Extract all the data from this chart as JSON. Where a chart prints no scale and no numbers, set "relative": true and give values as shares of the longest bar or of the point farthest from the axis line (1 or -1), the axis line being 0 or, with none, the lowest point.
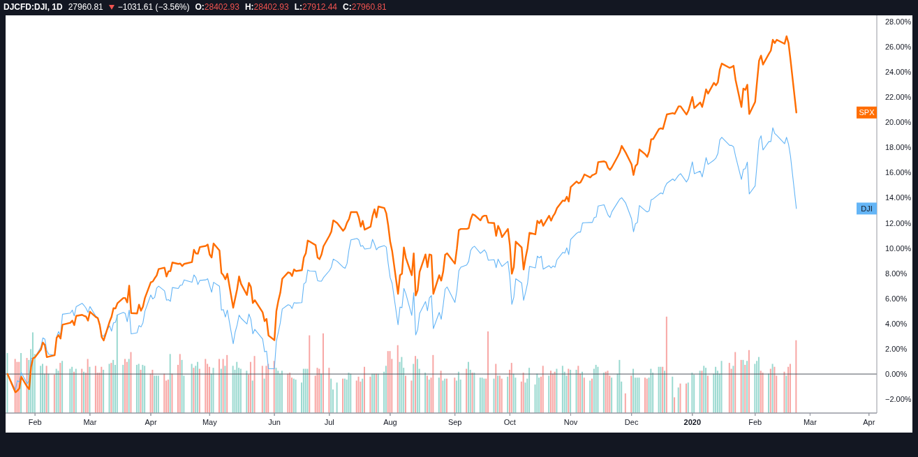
{
  "chart_data": [
    {
      "type": "line",
      "title": "DJCFD:DJI, 1D",
      "annotations": [
        "27960.81",
        "−1031.61 (−3.56%)",
        "O:28402.93",
        "H:28402.93",
        "L:27912.44",
        "C:27960.81"
      ],
      "x": [
        "2019-01-18",
        "2019-01-22",
        "2019-01-23",
        "2019-01-24",
        "2019-01-25",
        "2019-01-28",
        "2019-01-29",
        "2019-01-30",
        "2019-01-31",
        "2019-02-01",
        "2019-02-04",
        "2019-02-05",
        "2019-02-06",
        "2019-02-07",
        "2019-02-08",
        "2019-02-11",
        "2019-02-12",
        "2019-02-13",
        "2019-02-14",
        "2019-02-15",
        "2019-02-19",
        "2019-02-20",
        "2019-02-21",
        "2019-02-22",
        "2019-02-25",
        "2019-02-26",
        "2019-02-27",
        "2019-02-28",
        "2019-03-01",
        "2019-03-04",
        "2019-03-05",
        "2019-03-06",
        "2019-03-07",
        "2019-03-08",
        "2019-03-11",
        "2019-03-12",
        "2019-03-13",
        "2019-03-14",
        "2019-03-15",
        "2019-03-18",
        "2019-03-19",
        "2019-03-20",
        "2019-03-21",
        "2019-03-22",
        "2019-03-25",
        "2019-03-26",
        "2019-03-27",
        "2019-03-28",
        "2019-03-29",
        "2019-04-01",
        "2019-04-02",
        "2019-04-03",
        "2019-04-04",
        "2019-04-05",
        "2019-04-08",
        "2019-04-09",
        "2019-04-10",
        "2019-04-11",
        "2019-04-12",
        "2019-04-15",
        "2019-04-16",
        "2019-04-17",
        "2019-04-18",
        "2019-04-22",
        "2019-04-23",
        "2019-04-24",
        "2019-04-25",
        "2019-04-26",
        "2019-04-29",
        "2019-04-30",
        "2019-05-01",
        "2019-05-02",
        "2019-05-03",
        "2019-05-06",
        "2019-05-07",
        "2019-05-08",
        "2019-05-09",
        "2019-05-10",
        "2019-05-13",
        "2019-05-14",
        "2019-05-15",
        "2019-05-16",
        "2019-05-17",
        "2019-05-20",
        "2019-05-21",
        "2019-05-22",
        "2019-05-23",
        "2019-05-24",
        "2019-05-28",
        "2019-05-29",
        "2019-05-30",
        "2019-05-31",
        "2019-06-03",
        "2019-06-04",
        "2019-06-05",
        "2019-06-06",
        "2019-06-07",
        "2019-06-10",
        "2019-06-11",
        "2019-06-12",
        "2019-06-13",
        "2019-06-14",
        "2019-06-17",
        "2019-06-18",
        "2019-06-19",
        "2019-06-20",
        "2019-06-21",
        "2019-06-24",
        "2019-06-25",
        "2019-06-26",
        "2019-06-27",
        "2019-06-28",
        "2019-07-01",
        "2019-07-02",
        "2019-07-03",
        "2019-07-05",
        "2019-07-08",
        "2019-07-09",
        "2019-07-10",
        "2019-07-11",
        "2019-07-12",
        "2019-07-15",
        "2019-07-16",
        "2019-07-17",
        "2019-07-18",
        "2019-07-19",
        "2019-07-22",
        "2019-07-23",
        "2019-07-24",
        "2019-07-25",
        "2019-07-26",
        "2019-07-29",
        "2019-07-30",
        "2019-07-31",
        "2019-08-01",
        "2019-08-02",
        "2019-08-05",
        "2019-08-06",
        "2019-08-07",
        "2019-08-08",
        "2019-08-09",
        "2019-08-12",
        "2019-08-13",
        "2019-08-14",
        "2019-08-15",
        "2019-08-16",
        "2019-08-19",
        "2019-08-20",
        "2019-08-21",
        "2019-08-22",
        "2019-08-23",
        "2019-08-26",
        "2019-08-27",
        "2019-08-28",
        "2019-08-29",
        "2019-08-30",
        "2019-09-03",
        "2019-09-04",
        "2019-09-05",
        "2019-09-06",
        "2019-09-09",
        "2019-09-10",
        "2019-09-11",
        "2019-09-12",
        "2019-09-13",
        "2019-09-16",
        "2019-09-17",
        "2019-09-18",
        "2019-09-19",
        "2019-09-20",
        "2019-09-23",
        "2019-09-24",
        "2019-09-25",
        "2019-09-26",
        "2019-09-27",
        "2019-09-30",
        "2019-10-01",
        "2019-10-02",
        "2019-10-03",
        "2019-10-04",
        "2019-10-07",
        "2019-10-08",
        "2019-10-09",
        "2019-10-10",
        "2019-10-11",
        "2019-10-14",
        "2019-10-15",
        "2019-10-16",
        "2019-10-17",
        "2019-10-18",
        "2019-10-21",
        "2019-10-22",
        "2019-10-23",
        "2019-10-24",
        "2019-10-25",
        "2019-10-28",
        "2019-10-29",
        "2019-10-30",
        "2019-10-31",
        "2019-11-01",
        "2019-11-04",
        "2019-11-05",
        "2019-11-06",
        "2019-11-07",
        "2019-11-08",
        "2019-11-11",
        "2019-11-12",
        "2019-11-13",
        "2019-11-14",
        "2019-11-15",
        "2019-11-18",
        "2019-11-19",
        "2019-11-20",
        "2019-11-21",
        "2019-11-22",
        "2019-11-25",
        "2019-11-26",
        "2019-11-27",
        "2019-11-29",
        "2019-12-02",
        "2019-12-03",
        "2019-12-04",
        "2019-12-05",
        "2019-12-06",
        "2019-12-09",
        "2019-12-10",
        "2019-12-11",
        "2019-12-12",
        "2019-12-13",
        "2019-12-16",
        "2019-12-17",
        "2019-12-18",
        "2019-12-19",
        "2019-12-20",
        "2019-12-23",
        "2019-12-24",
        "2019-12-26",
        "2019-12-27",
        "2019-12-30",
        "2019-12-31",
        "2020-01-02",
        "2020-01-03",
        "2020-01-06",
        "2020-01-07",
        "2020-01-08",
        "2020-01-09",
        "2020-01-10",
        "2020-01-13",
        "2020-01-14",
        "2020-01-15",
        "2020-01-16",
        "2020-01-17",
        "2020-01-21",
        "2020-01-22",
        "2020-01-23",
        "2020-01-24",
        "2020-01-27",
        "2020-01-28",
        "2020-01-29",
        "2020-01-30",
        "2020-01-31",
        "2020-02-03",
        "2020-02-04",
        "2020-02-05",
        "2020-02-06",
        "2020-02-07",
        "2020-02-10",
        "2020-02-11",
        "2020-02-12",
        "2020-02-13",
        "2020-02-14",
        "2020-02-18",
        "2020-02-19",
        "2020-02-20",
        "2020-02-21",
        "2020-02-24"
      ],
      "xlim": [
        "2019-01-17",
        "2020-04-05"
      ],
      "xticks": [
        {
          "value": "2019-02-01",
          "label": "Feb"
        },
        {
          "value": "2019-03-01",
          "label": "Mar"
        },
        {
          "value": "2019-04-01",
          "label": "Apr"
        },
        {
          "value": "2019-05-01",
          "label": "May"
        },
        {
          "value": "2019-06-03",
          "label": "Jun"
        },
        {
          "value": "2019-07-01",
          "label": "Jul"
        },
        {
          "value": "2019-08-01",
          "label": "Aug"
        },
        {
          "value": "2019-09-03",
          "label": "Sep"
        },
        {
          "value": "2019-10-01",
          "label": "Oct"
        },
        {
          "value": "2019-11-01",
          "label": "Nov"
        },
        {
          "value": "2019-12-02",
          "label": "Dec"
        },
        {
          "value": "2020-01-02",
          "label": "2020"
        },
        {
          "value": "2020-02-03",
          "label": "Feb"
        },
        {
          "value": "2020-03-02",
          "label": "Mar"
        },
        {
          "value": "2020-04-01",
          "label": "Apr"
        }
      ],
      "ylim": [
        -3.1,
        28.5
      ],
      "yticks": [
        {
          "value": -2,
          "label": "−2.00%"
        },
        {
          "value": 0,
          "label": "0.00%"
        },
        {
          "value": 2,
          "label": "2.00%"
        },
        {
          "value": 4,
          "label": "4.00%"
        },
        {
          "value": 6,
          "label": "6.00%"
        },
        {
          "value": 8,
          "label": "8.00%"
        },
        {
          "value": 10,
          "label": "10.00%"
        },
        {
          "value": 12,
          "label": "12.00%"
        },
        {
          "value": 14,
          "label": "14.00%"
        },
        {
          "value": 16,
          "label": "16.00%"
        },
        {
          "value": 18,
          "label": "18.00%"
        },
        {
          "value": 20,
          "label": "20.00%"
        },
        {
          "value": 22,
          "label": "22.00%"
        },
        {
          "value": 24,
          "label": "24.00%"
        },
        {
          "value": 26,
          "label": "26.00%"
        },
        {
          "value": 28,
          "label": "28.00%"
        }
      ],
      "series": [
        {
          "name": "DJI",
          "color": "#64b5f6",
          "values": [
            0,
            -1.27,
            -0.53,
            -0.63,
            0.11,
            -0.76,
            -0.53,
            1.25,
            1.25,
            1.34,
            2.14,
            2.87,
            2.78,
            1.86,
            1.57,
            1.49,
            2.93,
            3.37,
            3.06,
            4.75,
            4.84,
            5.08,
            4.62,
            5.36,
            5.62,
            5.45,
            5.23,
            4.9,
            5.36,
            4.59,
            4.48,
            3.92,
            3.06,
            3.0,
            3.83,
            3.41,
            4.07,
            4.11,
            4.7,
            4.9,
            4.81,
            4.16,
            5.08,
            3.19,
            3.28,
            3.85,
            3.74,
            4.07,
            4.99,
            6.28,
            5.97,
            6.1,
            6.83,
            6.98,
            6.61,
            5.87,
            5.91,
            5.78,
            6.87,
            6.8,
            7.05,
            7.07,
            7.48,
            7.29,
            7.88,
            7.66,
            7.11,
            7.44,
            7.48,
            7.57,
            7.02,
            6.5,
            7.29,
            6.98,
            5.08,
            5.12,
            4.53,
            5.08,
            2.41,
            3.33,
            3.89,
            4.68,
            4.44,
            3.98,
            4.77,
            4.35,
            3.19,
            3.55,
            2.78,
            1.77,
            1.82,
            0.42,
            0.42,
            2.6,
            3.33,
            4.07,
            5.17,
            5.51,
            5.45,
            5.21,
            5.67,
            5.64,
            5.67,
            7.16,
            7.29,
            8.27,
            8.18,
            8.16,
            7.42,
            7.38,
            7.38,
            7.66,
            8.21,
            8.49,
            9.13,
            8.95,
            8.49,
            8.4,
            8.77,
            9.87,
            10.66,
            10.77,
            10.66,
            10.15,
            10.2,
            9.93,
            10.0,
            10.7,
            10.33,
            9.87,
            10.06,
            10.2,
            10.09,
            8.77,
            7.66,
            7.2,
            3.92,
            5.32,
            5.27,
            6.8,
            6.37,
            4.66,
            6.46,
            3.11,
            3.52,
            4.81,
            5.76,
            5.03,
            6.06,
            6.24,
            3.61,
            4.9,
            4.35,
            5.45,
            6.74,
            6.92,
            5.69,
            6.65,
            8.21,
            8.49,
            8.67,
            8.95,
            9.82,
            10.06,
            10.15,
            9.59,
            9.72,
            9.87,
            9.63,
            9.04,
            9.08,
            8.45,
            9.13,
            8.82,
            8.55,
            8.95,
            7.66,
            5.54,
            6.1,
            7.57,
            7.24,
            5.86,
            6.5,
            7.2,
            8.55,
            8.43,
            9.37,
            9.23,
            9.37,
            8.33,
            8.61,
            8.43,
            8.59,
            8.49,
            9.07,
            9.67,
            9.61,
            10.03,
            9.49,
            10.7,
            11.18,
            11.28,
            11.28,
            12.0,
            12.02,
            12.04,
            12.04,
            12.44,
            12.48,
            13.35,
            13.45,
            13.04,
            12.64,
            12.44,
            12.9,
            13.65,
            13.89,
            14.01,
            13.59,
            12.34,
            11.3,
            11.94,
            12.04,
            13.39,
            12.98,
            12.88,
            12.98,
            13.85,
            13.91,
            14.29,
            14.39,
            14.31,
            14.85,
            15.15,
            15.5,
            15.36,
            15.8,
            15.92,
            15.26,
            15.52,
            16.86,
            15.92,
            16.12,
            15.66,
            16.36,
            17.2,
            16.66,
            17.0,
            17.16,
            17.52,
            18.61,
            18.81,
            18.17,
            18.17,
            18.05,
            17.32,
            15.46,
            16.26,
            16.32,
            16.84,
            14.31,
            14.95,
            16.76,
            18.57,
            18.93,
            17.8,
            18.47,
            18.47,
            19.57,
            19.11,
            18.97,
            18.31,
            18.81,
            18.27,
            17.32,
            13.15
          ]
        },
        {
          "name": "SPX",
          "color": "#ff6d00",
          "values": [
            0,
            -1.45,
            -1.33,
            -1.14,
            -0.22,
            -1.01,
            -1.2,
            0.57,
            1.25,
            1.33,
            1.95,
            2.5,
            2.3,
            1.34,
            1.38,
            1.49,
            2.87,
            3.09,
            2.82,
            3.92,
            4.07,
            4.24,
            3.89,
            4.62,
            4.7,
            4.62,
            4.57,
            4.24,
            4.95,
            4.53,
            4.44,
            3.89,
            2.93,
            2.67,
            4.16,
            4.55,
            5.23,
            5.21,
            5.62,
            6.04,
            6.04,
            5.69,
            7.02,
            4.84,
            4.81,
            5.51,
            5.03,
            5.36,
            6.04,
            7.29,
            7.35,
            7.61,
            7.83,
            8.34,
            8.45,
            7.75,
            8.16,
            8.18,
            8.86,
            8.75,
            8.78,
            8.58,
            8.75,
            8.9,
            9.87,
            9.58,
            9.56,
            10.09,
            10.18,
            10.29,
            9.5,
            9.26,
            10.37,
            9.82,
            8.03,
            7.85,
            7.53,
            7.97,
            5.27,
            6.0,
            6.74,
            7.75,
            7.16,
            6.28,
            7.24,
            6.92,
            5.64,
            5.87,
            4.9,
            4.2,
            4.38,
            3.06,
            2.69,
            4.99,
            5.82,
            6.46,
            7.57,
            8.08,
            8.03,
            7.79,
            8.31,
            8.18,
            8.25,
            9.26,
            9.59,
            10.61,
            10.52,
            10.24,
            9.26,
            9.13,
            9.5,
            10.15,
            10.98,
            11.31,
            12.21,
            11.99,
            11.38,
            11.58,
            12.03,
            12.3,
            12.87,
            12.87,
            12.45,
            11.71,
            12.17,
            11.47,
            11.71,
            12.54,
            13.09,
            12.45,
            13.31,
            13.19,
            12.78,
            11.8,
            10.52,
            9.78,
            6.37,
            7.85,
            7.97,
            10.06,
            9.23,
            7.85,
            9.59,
            6.24,
            6.65,
            8.12,
            9.5,
            8.49,
            9.5,
            9.45,
            6.37,
            7.85,
            7.42,
            8.12,
            9.47,
            9.59,
            8.77,
            9.96,
            11.44,
            11.53,
            11.53,
            11.58,
            12.27,
            12.69,
            12.63,
            12.21,
            12.5,
            12.58,
            12.58,
            12.03,
            11.99,
            10.98,
            11.77,
            11.44,
            10.88,
            11.53,
            10.24,
            7.97,
            8.49,
            10.52,
            10.06,
            8.31,
            9.23,
            10.0,
            11.22,
            11.1,
            12.18,
            11.98,
            12.24,
            11.78,
            12.58,
            12.18,
            12.54,
            12.78,
            13.18,
            13.79,
            13.75,
            14.09,
            13.71,
            14.86,
            15.3,
            15.16,
            15.23,
            15.52,
            15.86,
            15.62,
            15.8,
            15.86,
            15.96,
            16.84,
            16.9,
            16.82,
            16.4,
            16.22,
            16.44,
            17.3,
            17.62,
            18.13,
            17.6,
            16.66,
            15.82,
            16.52,
            16.7,
            17.84,
            17.46,
            17.26,
            17.7,
            18.65,
            18.67,
            19.47,
            19.53,
            19.47,
            20.05,
            20.63,
            20.73,
            20.67,
            21.27,
            21.27,
            20.62,
            20.93,
            22.02,
            21.13,
            21.58,
            21.22,
            21.86,
            22.62,
            22.28,
            23.14,
            22.94,
            23.19,
            24.19,
            24.67,
            24.33,
            24.39,
            24.49,
            23.39,
            21.22,
            22.68,
            22.58,
            22.99,
            20.66,
            21.63,
            23.29,
            24.9,
            25.3,
            24.59,
            25.44,
            25.7,
            26.56,
            26.3,
            26.56,
            26.24,
            26.84,
            26.3,
            25.0,
            20.78
          ]
        }
      ],
      "ref_lines": [
        {
          "axis": "y",
          "value": 0,
          "color": "#50535e"
        }
      ],
      "grid": false,
      "legend": false
    },
    {
      "type": "bar",
      "relative": true,
      "tick_labels": false,
      "x": [
        "2019-01-18",
        "2019-01-22",
        "2019-01-23",
        "2019-01-24",
        "2019-01-25",
        "2019-01-28",
        "2019-01-29",
        "2019-01-30",
        "2019-01-31",
        "2019-02-01",
        "2019-02-04",
        "2019-02-05",
        "2019-02-06",
        "2019-02-07",
        "2019-02-08",
        "2019-02-11",
        "2019-02-12",
        "2019-02-13",
        "2019-02-14",
        "2019-02-15",
        "2019-02-19",
        "2019-02-20",
        "2019-02-21",
        "2019-02-22",
        "2019-02-25",
        "2019-02-26",
        "2019-02-27",
        "2019-02-28",
        "2019-03-01",
        "2019-03-04",
        "2019-03-05",
        "2019-03-06",
        "2019-03-07",
        "2019-03-08",
        "2019-03-11",
        "2019-03-12",
        "2019-03-13",
        "2019-03-14",
        "2019-03-15",
        "2019-03-18",
        "2019-03-19",
        "2019-03-20",
        "2019-03-21",
        "2019-03-22",
        "2019-03-25",
        "2019-03-26",
        "2019-03-27",
        "2019-03-28",
        "2019-03-29",
        "2019-04-01",
        "2019-04-02",
        "2019-04-03",
        "2019-04-04",
        "2019-04-05",
        "2019-04-08",
        "2019-04-09",
        "2019-04-10",
        "2019-04-11",
        "2019-04-12",
        "2019-04-15",
        "2019-04-16",
        "2019-04-17",
        "2019-04-18",
        "2019-04-22",
        "2019-04-23",
        "2019-04-24",
        "2019-04-25",
        "2019-04-26",
        "2019-04-29",
        "2019-04-30",
        "2019-05-01",
        "2019-05-02",
        "2019-05-03",
        "2019-05-06",
        "2019-05-07",
        "2019-05-08",
        "2019-05-09",
        "2019-05-10",
        "2019-05-13",
        "2019-05-14",
        "2019-05-15",
        "2019-05-16",
        "2019-05-17",
        "2019-05-20",
        "2019-05-21",
        "2019-05-22",
        "2019-05-23",
        "2019-05-24",
        "2019-05-28",
        "2019-05-29",
        "2019-05-30",
        "2019-05-31",
        "2019-06-03",
        "2019-06-04",
        "2019-06-05",
        "2019-06-06",
        "2019-06-07",
        "2019-06-10",
        "2019-06-11",
        "2019-06-12",
        "2019-06-13",
        "2019-06-14",
        "2019-06-17",
        "2019-06-18",
        "2019-06-19",
        "2019-06-20",
        "2019-06-21",
        "2019-06-24",
        "2019-06-25",
        "2019-06-26",
        "2019-06-27",
        "2019-06-28",
        "2019-07-01",
        "2019-07-02",
        "2019-07-03",
        "2019-07-05",
        "2019-07-08",
        "2019-07-09",
        "2019-07-10",
        "2019-07-11",
        "2019-07-12",
        "2019-07-15",
        "2019-07-16",
        "2019-07-17",
        "2019-07-18",
        "2019-07-19",
        "2019-07-22",
        "2019-07-23",
        "2019-07-24",
        "2019-07-25",
        "2019-07-26",
        "2019-07-29",
        "2019-07-30",
        "2019-07-31",
        "2019-08-01",
        "2019-08-02",
        "2019-08-05",
        "2019-08-06",
        "2019-08-07",
        "2019-08-08",
        "2019-08-09",
        "2019-08-12",
        "2019-08-13",
        "2019-08-14",
        "2019-08-15",
        "2019-08-16",
        "2019-08-19",
        "2019-08-20",
        "2019-08-21",
        "2019-08-22",
        "2019-08-23",
        "2019-08-26",
        "2019-08-27",
        "2019-08-28",
        "2019-08-29",
        "2019-08-30",
        "2019-09-03",
        "2019-09-04",
        "2019-09-05",
        "2019-09-06",
        "2019-09-09",
        "2019-09-10",
        "2019-09-11",
        "2019-09-12",
        "2019-09-13",
        "2019-09-16",
        "2019-09-17",
        "2019-09-18",
        "2019-09-19",
        "2019-09-20",
        "2019-09-23",
        "2019-09-24",
        "2019-09-25",
        "2019-09-26",
        "2019-09-27",
        "2019-09-30",
        "2019-10-01",
        "2019-10-02",
        "2019-10-03",
        "2019-10-04",
        "2019-10-07",
        "2019-10-08",
        "2019-10-09",
        "2019-10-10",
        "2019-10-11",
        "2019-10-14",
        "2019-10-15",
        "2019-10-16",
        "2019-10-17",
        "2019-10-18",
        "2019-10-21",
        "2019-10-22",
        "2019-10-23",
        "2019-10-24",
        "2019-10-25",
        "2019-10-28",
        "2019-10-29",
        "2019-10-30",
        "2019-10-31",
        "2019-11-01",
        "2019-11-04",
        "2019-11-05",
        "2019-11-06",
        "2019-11-07",
        "2019-11-08",
        "2019-11-11",
        "2019-11-12",
        "2019-11-13",
        "2019-11-14",
        "2019-11-15",
        "2019-11-18",
        "2019-11-19",
        "2019-11-20",
        "2019-11-21",
        "2019-11-22",
        "2019-11-25",
        "2019-11-26",
        "2019-11-27",
        "2019-11-29",
        "2019-12-02",
        "2019-12-03",
        "2019-12-04",
        "2019-12-05",
        "2019-12-06",
        "2019-12-09",
        "2019-12-10",
        "2019-12-11",
        "2019-12-12",
        "2019-12-13",
        "2019-12-16",
        "2019-12-17",
        "2019-12-18",
        "2019-12-19",
        "2019-12-20",
        "2019-12-23",
        "2019-12-24",
        "2019-12-26",
        "2019-12-27",
        "2019-12-30",
        "2019-12-31",
        "2020-01-02",
        "2020-01-03",
        "2020-01-06",
        "2020-01-07",
        "2020-01-08",
        "2020-01-09",
        "2020-01-10",
        "2020-01-13",
        "2020-01-14",
        "2020-01-15",
        "2020-01-16",
        "2020-01-17",
        "2020-01-21",
        "2020-01-22",
        "2020-01-23",
        "2020-01-24",
        "2020-01-27",
        "2020-01-28",
        "2020-01-29",
        "2020-01-30",
        "2020-01-31",
        "2020-02-03",
        "2020-02-04",
        "2020-02-05",
        "2020-02-06",
        "2020-02-07",
        "2020-02-10",
        "2020-02-11",
        "2020-02-12",
        "2020-02-13",
        "2020-02-14",
        "2020-02-18",
        "2020-02-19",
        "2020-02-20",
        "2020-02-21",
        "2020-02-24"
      ],
      "xlim": [
        "2019-01-17",
        "2020-04-05"
      ],
      "xticks": [
        "2019-02-01",
        "2019-03-01",
        "2019-04-01",
        "2019-05-01",
        "2019-06-03",
        "2019-07-01",
        "2019-08-01",
        "2019-09-03",
        "2019-10-01",
        "2019-11-01",
        "2019-12-02",
        "2020-01-02",
        "2020-02-03",
        "2020-03-02",
        "2020-04-01"
      ],
      "values": [
        0.61,
        0.55,
        0.52,
        0.52,
        0.61,
        0.56,
        0.54,
        0.65,
        0.82,
        0.6,
        0.48,
        0.5,
        0.4,
        0.48,
        0.4,
        0.39,
        0.45,
        0.43,
        0.51,
        0.53,
        0.45,
        0.47,
        0.42,
        0.45,
        0.45,
        0.42,
        0.41,
        0.55,
        0.47,
        0.48,
        0.41,
        0.41,
        0.47,
        0.44,
        0.5,
        0.51,
        0.54,
        0.49,
        1,
        0.49,
        0.55,
        0.52,
        0.55,
        0.62,
        0.49,
        0.5,
        0.44,
        0.49,
        0.48,
        0.4,
        0.44,
        0.38,
        0.38,
        0.38,
        0.4,
        0.33,
        0.34,
        0.6,
        0.4,
        0.49,
        0.6,
        0.54,
        0.38,
        0.5,
        0.46,
        0.48,
        0.52,
        0.45,
        0.55,
        0.5,
        0.47,
        0.4,
        0.46,
        0.55,
        0.45,
        0.55,
        0.48,
        0.59,
        0.48,
        0.44,
        0.52,
        0.46,
        0.45,
        0.43,
        0.39,
        0.52,
        0.33,
        0.58,
        0.48,
        0.35,
        0.48,
        0.5,
        0.53,
        0.46,
        0.43,
        0.4,
        0.43,
        0.4,
        0.41,
        0.36,
        0.35,
        0.34,
        0.31,
        0.45,
        0.45,
        0.45,
        0.79,
        0.38,
        0.46,
        0.45,
        0.4,
        0.81,
        0.46,
        0.35,
        0.24,
        0.31,
        0.35,
        0.35,
        0.34,
        0.41,
        0.4,
        0.33,
        0.37,
        0.32,
        0.35,
        0.47,
        0.37,
        0.4,
        0.4,
        0.4,
        0.4,
        0.42,
        0.48,
        0.63,
        0.63,
        0.55,
        0.69,
        0.52,
        0.57,
        0.46,
        0.38,
        0.33,
        0.5,
        0.58,
        0.55,
        0.45,
        0.41,
        0.38,
        0.34,
        0.36,
        0.59,
        0.36,
        0.43,
        0.33,
        0.35,
        0.35,
        0.36,
        0.33,
        0.42,
        0.34,
        0.45,
        0.52,
        0.44,
        0.41,
        0.41,
        0.36,
        0.36,
        0.35,
        0.35,
        0.83,
        0.35,
        0.5,
        0.38,
        0.38,
        0.35,
        0.37,
        0.44,
        0.51,
        0.4,
        0.36,
        0.32,
        0.41,
        0.31,
        0.35,
        0.46,
        0.29,
        0.4,
        0.36,
        0.37,
        0.48,
        0.38,
        0.43,
        0.4,
        0.42,
        0.45,
        0.48,
        0.42,
        0.38,
        0.45,
        0.44,
        0.44,
        0.48,
        0.4,
        0.42,
        0.36,
        0.33,
        0.35,
        0.45,
        0.49,
        0.47,
        0.41,
        0.42,
        0.43,
        0.38,
        0.36,
        0.4,
        0.54,
        0.32,
        0.2,
        0.38,
        0.45,
        0.36,
        0.36,
        0.36,
        0.36,
        0.35,
        0.36,
        0.45,
        0.41,
        0.47,
        0.47,
        0.47,
        0.43,
        0.98,
        0.37,
        0.16,
        0.26,
        0.3,
        0.3,
        0.31,
        0.41,
        0.39,
        0.43,
        0.43,
        0.48,
        0.46,
        0.38,
        0.4,
        0.47,
        0.43,
        0.4,
        0.53,
        0.51,
        0.45,
        0.48,
        0.62,
        0.54,
        0.54,
        0.49,
        0.53,
        0.64,
        0.5,
        0.53,
        0.57,
        0.43,
        0.41,
        0.4,
        0.45,
        0.5,
        0.47,
        0.38,
        0.42,
        0.38,
        0.47,
        0.5,
        0.74
      ],
      "colors": [
        "#9ad9d0",
        "#f8a6a4",
        "#f8a6a4",
        "#f8a6a4",
        "#9ad9d0",
        "#f8a6a4",
        "#9ad9d0",
        "#9ad9d0",
        "#9ad9d0",
        "#9ad9d0",
        "#9ad9d0",
        "#9ad9d0",
        "#9ad9d0",
        "#f8a6a4",
        "#9ad9d0",
        "#f8a6a4",
        "#9ad9d0",
        "#9ad9d0",
        "#f8a6a4",
        "#9ad9d0",
        "#9ad9d0",
        "#9ad9d0",
        "#f8a6a4",
        "#9ad9d0",
        "#f8a6a4",
        "#9ad9d0",
        "#f8a6a4",
        "#f8a6a4",
        "#9ad9d0",
        "#f8a6a4",
        "#f8a6a4",
        "#f8a6a4",
        "#f8a6a4",
        "#9ad9d0",
        "#9ad9d0",
        "#f8a6a4",
        "#9ad9d0",
        "#9ad9d0",
        "#9ad9d0",
        "#9ad9d0",
        "#f8a6a4",
        "#f8a6a4",
        "#9ad9d0",
        "#f8a6a4",
        "#9ad9d0",
        "#9ad9d0",
        "#f8a6a4",
        "#9ad9d0",
        "#9ad9d0",
        "#f8a6a4",
        "#f8a6a4",
        "#9ad9d0",
        "#9ad9d0",
        "#9ad9d0",
        "#f8a6a4",
        "#f8a6a4",
        "#f8a6a4",
        "#9ad9d0",
        "#f8a6a4",
        "#f8a6a4",
        "#f8a6a4",
        "#9ad9d0",
        "#9ad9d0",
        "#9ad9d0",
        "#f8a6a4",
        "#9ad9d0",
        "#9ad9d0",
        "#f8a6a4",
        "#f8a6a4",
        "#f8a6a4",
        "#f8a6a4",
        "#9ad9d0",
        "#9ad9d0",
        "#f8a6a4",
        "#9ad9d0",
        "#f8a6a4",
        "#9ad9d0",
        "#f8a6a4",
        "#9ad9d0",
        "#9ad9d0",
        "#9ad9d0",
        "#9ad9d0",
        "#9ad9d0",
        "#9ad9d0",
        "#f8a6a4",
        "#f8a6a4",
        "#9ad9d0",
        "#f8a6a4",
        "#f8a6a4",
        "#9ad9d0",
        "#f8a6a4",
        "#f8a6a4",
        "#f8a6a4",
        "#9ad9d0",
        "#9ad9d0",
        "#9ad9d0",
        "#9ad9d0",
        "#f8a6a4",
        "#f8a6a4",
        "#f8a6a4",
        "#9ad9d0",
        "#9ad9d0",
        "#9ad9d0",
        "#9ad9d0",
        "#9ad9d0",
        "#9ad9d0",
        "#f8a6a4",
        "#f8a6a4",
        "#f8a6a4",
        "#f8a6a4",
        "#9ad9d0",
        "#f8a6a4",
        "#f8a6a4",
        "#9ad9d0",
        "#9ad9d0",
        "#9ad9d0",
        "#f8a6a4",
        "#9ad9d0",
        "#9ad9d0",
        "#9ad9d0",
        "#9ad9d0",
        "#f8a6a4",
        "#f8a6a4",
        "#f8a6a4",
        "#9ad9d0",
        "#f8a6a4",
        "#f8a6a4",
        "#9ad9d0",
        "#9ad9d0",
        "#f8a6a4",
        "#9ad9d0",
        "#9ad9d0",
        "#9ad9d0",
        "#f8a6a4",
        "#f8a6a4",
        "#f8a6a4",
        "#f8a6a4",
        "#9ad9d0",
        "#9ad9d0",
        "#9ad9d0",
        "#f8a6a4",
        "#f8a6a4",
        "#9ad9d0",
        "#f8a6a4",
        "#9ad9d0",
        "#9ad9d0",
        "#9ad9d0",
        "#f8a6a4",
        "#9ad9d0",
        "#f8a6a4",
        "#f8a6a4",
        "#9ad9d0",
        "#f8a6a4",
        "#9ad9d0",
        "#9ad9d0",
        "#f8a6a4",
        "#f8a6a4",
        "#9ad9d0",
        "#9ad9d0",
        "#9ad9d0",
        "#f8a6a4",
        "#9ad9d0",
        "#9ad9d0",
        "#f8a6a4",
        "#9ad9d0",
        "#9ad9d0",
        "#9ad9d0",
        "#9ad9d0",
        "#f8a6a4",
        "#f8a6a4",
        "#9ad9d0",
        "#f8a6a4",
        "#9ad9d0",
        "#f8a6a4",
        "#f8a6a4",
        "#9ad9d0",
        "#f8a6a4",
        "#f8a6a4",
        "#9ad9d0",
        "#9ad9d0",
        "#f8a6a4",
        "#f8a6a4",
        "#9ad9d0",
        "#9ad9d0",
        "#9ad9d0",
        "#9ad9d0",
        "#9ad9d0",
        "#9ad9d0",
        "#f8a6a4",
        "#f8a6a4",
        "#9ad9d0",
        "#f8a6a4",
        "#f8a6a4",
        "#f8a6a4",
        "#9ad9d0",
        "#9ad9d0",
        "#9ad9d0",
        "#9ad9d0",
        "#f8a6a4",
        "#9ad9d0",
        "#9ad9d0",
        "#f8a6a4",
        "#f8a6a4",
        "#9ad9d0",
        "#f8a6a4",
        "#9ad9d0",
        "#f8a6a4",
        "#9ad9d0",
        "#9ad9d0",
        "#9ad9d0",
        "#9ad9d0",
        "#f8a6a4",
        "#f8a6a4",
        "#f8a6a4",
        "#9ad9d0",
        "#9ad9d0",
        "#9ad9d0",
        "#9ad9d0",
        "#f8a6a4",
        "#f8a6a4",
        "#9ad9d0",
        "#9ad9d0",
        "#9ad9d0",
        "#9ad9d0",
        "#f8a6a4",
        "#f8a6a4",
        "#9ad9d0",
        "#9ad9d0",
        "#9ad9d0",
        "#9ad9d0",
        "#9ad9d0",
        "#f8a6a4",
        "#9ad9d0",
        "#f8a6a4",
        "#9ad9d0",
        "#f8a6a4",
        "#9ad9d0",
        "#f8a6a4",
        "#f8a6a4",
        "#9ad9d0",
        "#9ad9d0",
        "#9ad9d0",
        "#9ad9d0",
        "#f8a6a4",
        "#9ad9d0",
        "#9ad9d0",
        "#f8a6a4",
        "#9ad9d0",
        "#9ad9d0",
        "#9ad9d0",
        "#9ad9d0",
        "#9ad9d0",
        "#f8a6a4",
        "#f8a6a4",
        "#9ad9d0",
        "#f8a6a4",
        "#f8a6a4",
        "#9ad9d0",
        "#f8a6a4",
        "#9ad9d0",
        "#f8a6a4",
        "#9ad9d0",
        "#9ad9d0",
        "#9ad9d0",
        "#f8a6a4",
        "#f8a6a4",
        "#9ad9d0",
        "#f8a6a4",
        "#9ad9d0",
        "#f8a6a4",
        "#f8a6a4",
        "#f8a6a4",
        "#9ad9d0",
        "#f8a6a4",
        "#f8a6a4",
        "#f8a6a4"
      ]
    }
  ]
}
